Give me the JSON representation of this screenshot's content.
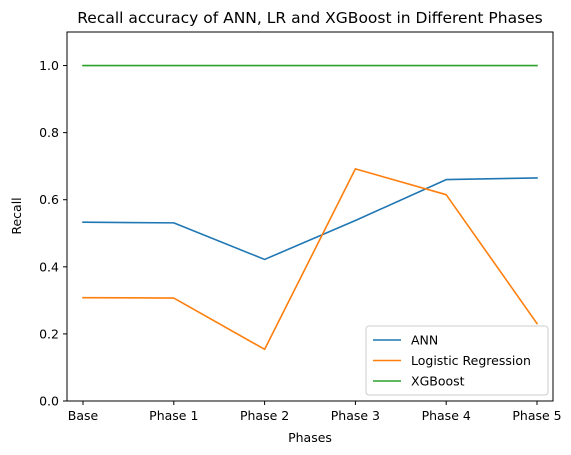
{
  "chart_data": {
    "type": "line",
    "title": "Recall accuracy of ANN, LR and XGBoost in Different Phases",
    "xlabel": "Phases",
    "ylabel": "Recall",
    "categories": [
      "Base",
      "Phase 1",
      "Phase 2",
      "Phase 3",
      "Phase 4",
      "Phase 5"
    ],
    "yticks": [
      "0.0",
      "0.2",
      "0.4",
      "0.6",
      "0.8",
      "1.0"
    ],
    "ylim": [
      0,
      1.1
    ],
    "grid": false,
    "legend_position": "lower-right",
    "series": [
      {
        "name": "ANN",
        "color": "#1f77b4",
        "values": [
          0.533,
          0.531,
          0.422,
          0.538,
          0.66,
          0.665
        ]
      },
      {
        "name": "Logistic Regression",
        "color": "#ff7f0e",
        "values": [
          0.308,
          0.307,
          0.154,
          0.692,
          0.615,
          0.231
        ]
      },
      {
        "name": "XGBoost",
        "color": "#2ca02c",
        "values": [
          1.0,
          1.0,
          1.0,
          1.0,
          1.0,
          1.0
        ]
      }
    ]
  }
}
